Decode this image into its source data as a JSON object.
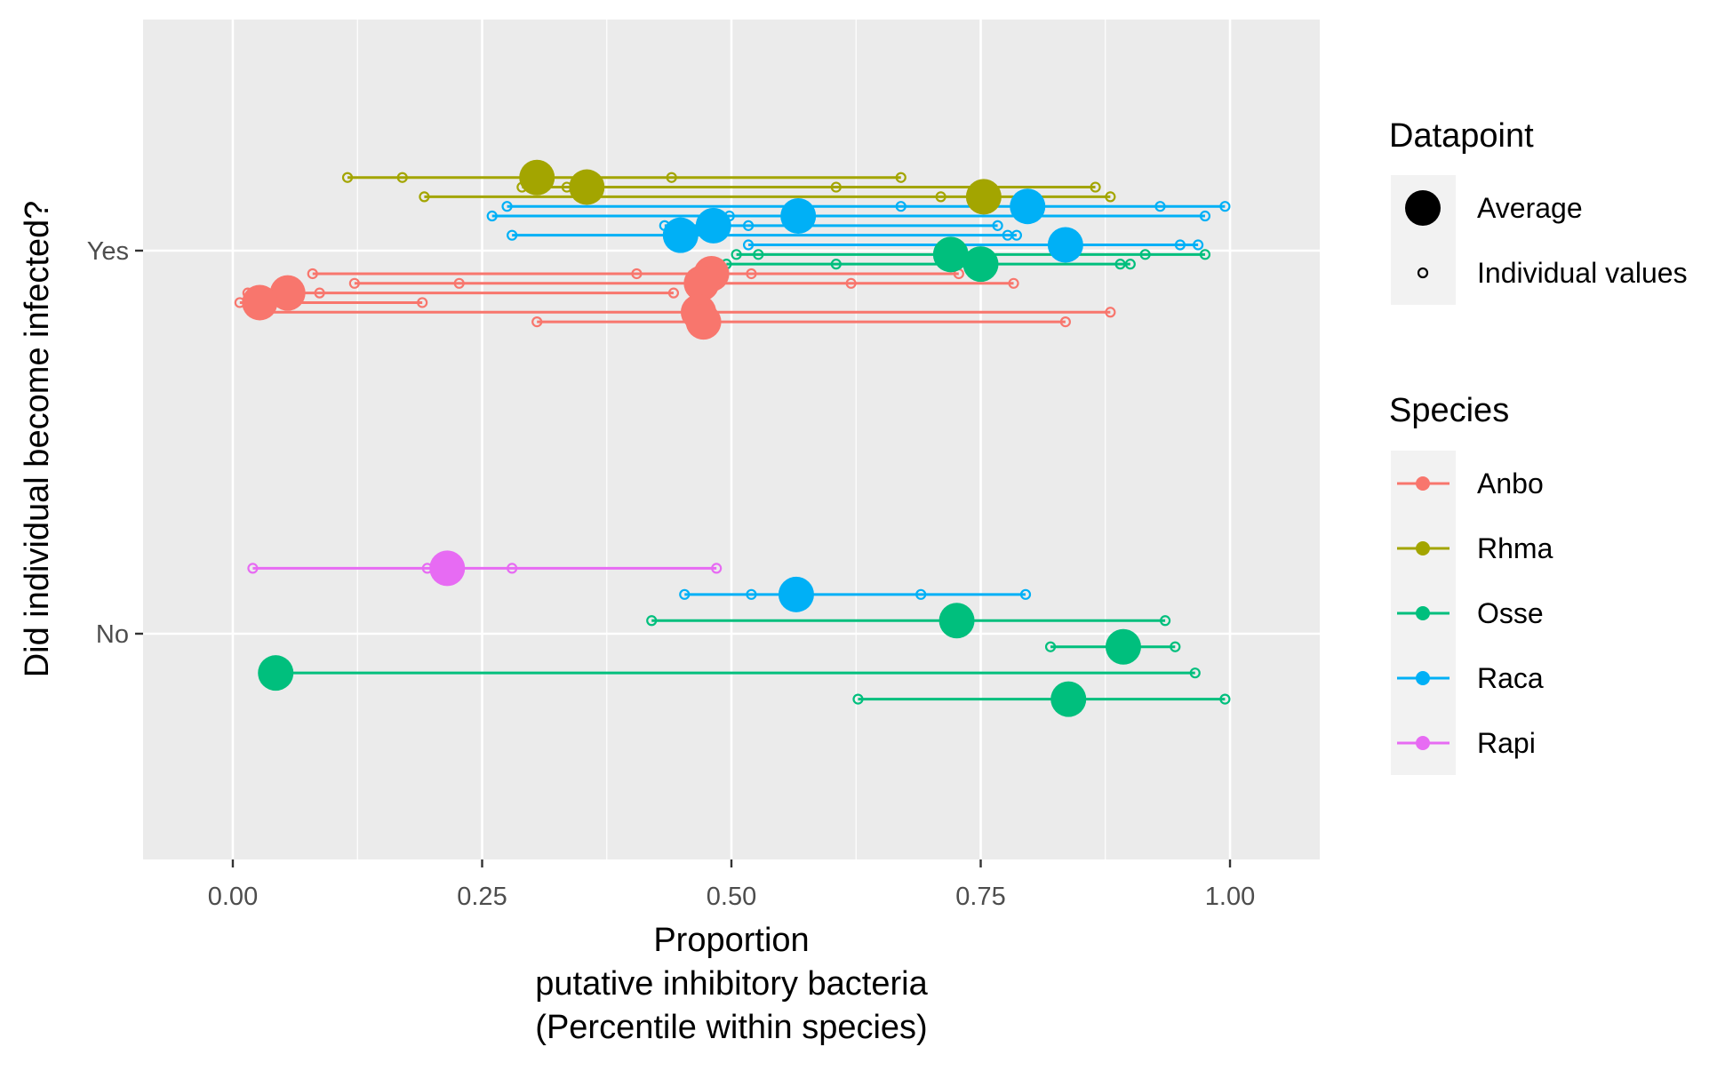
{
  "chart_data": {
    "type": "scatter",
    "xlabel": "Proportion\nputative inhibitory bacteria\n(Percentile within species)",
    "ylabel": "Did individual become infected?",
    "xlim": [
      -0.09,
      1.09
    ],
    "x_ticks": [
      "0.00",
      "0.25",
      "0.50",
      "0.75",
      "1.00"
    ],
    "y_ticks": [
      "Yes",
      "No"
    ],
    "grid": true,
    "legend_position": "right",
    "legend": {
      "datapoint_title": "Datapoint",
      "datapoint_items": [
        "Average",
        "Individual values"
      ],
      "species_title": "Species",
      "species_items": [
        "Anbo",
        "Rhma",
        "Osse",
        "Raca",
        "Rapi"
      ]
    },
    "colors": {
      "Anbo": "#F8766D",
      "Rhma": "#A3A500",
      "Osse": "#00BF7D",
      "Raca": "#00B0F6",
      "Rapi": "#E76BF3",
      "panel_bg": "#EBEBEB",
      "grid": "#FFFFFF",
      "axis_text": "#4D4D4D"
    },
    "groups": [
      {
        "species": "Rhma",
        "infected": "Yes",
        "offset": 0.19,
        "average": 0.305,
        "individuals": [
          0.115,
          0.17,
          0.44,
          0.67
        ]
      },
      {
        "species": "Rhma",
        "infected": "Yes",
        "offset": 0.165,
        "average": 0.355,
        "individuals": [
          0.29,
          0.335,
          0.605,
          0.865
        ]
      },
      {
        "species": "Rhma",
        "infected": "Yes",
        "offset": 0.14,
        "average": 0.753,
        "individuals": [
          0.192,
          0.71,
          0.88
        ]
      },
      {
        "species": "Raca",
        "infected": "Yes",
        "offset": 0.115,
        "average": 0.797,
        "individuals": [
          0.275,
          0.67,
          0.93,
          0.995
        ]
      },
      {
        "species": "Raca",
        "infected": "Yes",
        "offset": 0.09,
        "average": 0.567,
        "individuals": [
          0.26,
          0.498,
          0.975
        ]
      },
      {
        "species": "Raca",
        "infected": "Yes",
        "offset": 0.065,
        "average": 0.482,
        "individuals": [
          0.433,
          0.517,
          0.767
        ]
      },
      {
        "species": "Raca",
        "infected": "Yes",
        "offset": 0.04,
        "average": 0.449,
        "individuals": [
          0.28,
          0.777,
          0.786
        ]
      },
      {
        "species": "Raca",
        "infected": "Yes",
        "offset": 0.015,
        "average": 0.835,
        "individuals": [
          0.517,
          0.95,
          0.968
        ]
      },
      {
        "species": "Osse",
        "infected": "Yes",
        "offset": -0.01,
        "average": 0.72,
        "individuals": [
          0.505,
          0.527,
          0.915,
          0.975
        ]
      },
      {
        "species": "Osse",
        "infected": "Yes",
        "offset": -0.035,
        "average": 0.75,
        "individuals": [
          0.495,
          0.605,
          0.89,
          0.9
        ]
      },
      {
        "species": "Anbo",
        "infected": "Yes",
        "offset": -0.06,
        "average": 0.48,
        "individuals": [
          0.08,
          0.405,
          0.52,
          0.728
        ]
      },
      {
        "species": "Anbo",
        "infected": "Yes",
        "offset": -0.085,
        "average": 0.47,
        "individuals": [
          0.122,
          0.227,
          0.62,
          0.783
        ]
      },
      {
        "species": "Anbo",
        "infected": "Yes",
        "offset": -0.11,
        "average": 0.055,
        "individuals": [
          0.015,
          0.087,
          0.442
        ]
      },
      {
        "species": "Anbo",
        "infected": "Yes",
        "offset": -0.135,
        "average": 0.027,
        "individuals": [
          0.007,
          0.19
        ]
      },
      {
        "species": "Anbo",
        "infected": "Yes",
        "offset": -0.16,
        "average": 0.467,
        "individuals": [
          0.025,
          0.88
        ]
      },
      {
        "species": "Anbo",
        "infected": "Yes",
        "offset": -0.185,
        "average": 0.472,
        "individuals": [
          0.305,
          0.835
        ]
      },
      {
        "species": "Rapi",
        "infected": "No",
        "offset": 0.17,
        "average": 0.215,
        "individuals": [
          0.02,
          0.195,
          0.28,
          0.485
        ]
      },
      {
        "species": "Raca",
        "infected": "No",
        "offset": 0.102,
        "average": 0.565,
        "individuals": [
          0.453,
          0.52,
          0.69,
          0.795
        ]
      },
      {
        "species": "Osse",
        "infected": "No",
        "offset": 0.034,
        "average": 0.726,
        "individuals": [
          0.42,
          0.935
        ]
      },
      {
        "species": "Osse",
        "infected": "No",
        "offset": -0.034,
        "average": 0.893,
        "individuals": [
          0.82,
          0.945
        ]
      },
      {
        "species": "Osse",
        "infected": "No",
        "offset": -0.102,
        "average": 0.043,
        "individuals": [
          0.965
        ]
      },
      {
        "species": "Osse",
        "infected": "No",
        "offset": -0.17,
        "average": 0.838,
        "individuals": [
          0.627,
          0.995
        ]
      }
    ]
  }
}
